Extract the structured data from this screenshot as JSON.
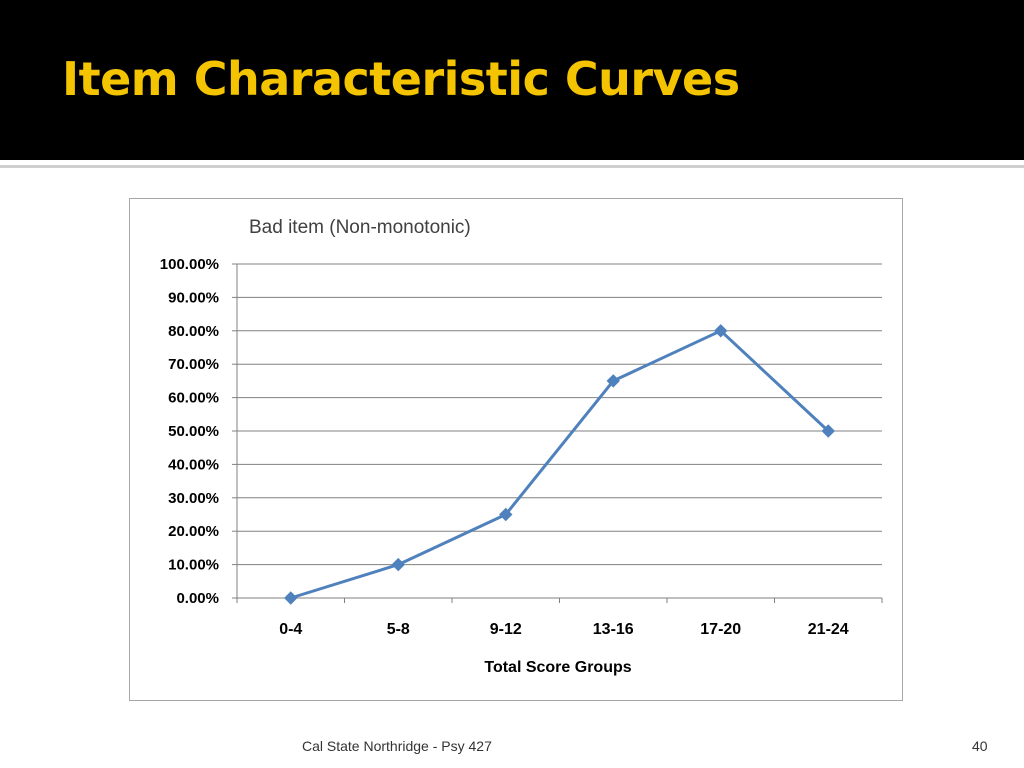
{
  "slide": {
    "title": "Item Characteristic Curves",
    "footer": "Cal State Northridge - Psy 427",
    "page_number": "40"
  },
  "colors": {
    "title_bar": "#000000",
    "title_text": "#f5c400",
    "series_line": "#4f81bd",
    "gridline": "#808080"
  },
  "chart_data": {
    "type": "line",
    "title": "Bad item (Non-monotonic)",
    "xlabel": "Total Score Groups",
    "ylabel": "",
    "categories": [
      "0-4",
      "5-8",
      "9-12",
      "13-16",
      "17-20",
      "21-24"
    ],
    "series": [
      {
        "values": [
          0.0,
          10.0,
          25.0,
          65.0,
          80.0,
          50.0
        ],
        "marker": "diamond"
      }
    ],
    "ylim": [
      0,
      100
    ],
    "yticks": [
      "0.00%",
      "10.00%",
      "20.00%",
      "30.00%",
      "40.00%",
      "50.00%",
      "60.00%",
      "70.00%",
      "80.00%",
      "90.00%",
      "100.00%"
    ],
    "grid": true,
    "legend": "none"
  }
}
